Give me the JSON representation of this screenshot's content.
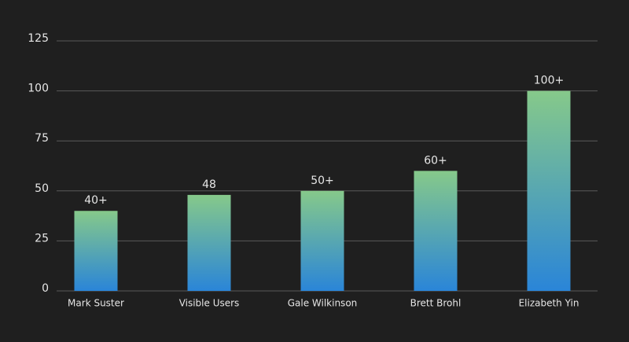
{
  "chart_data": {
    "type": "bar",
    "categories": [
      "Mark Suster",
      "Visible Users",
      "Gale Wilkinson",
      "Brett Brohl",
      "Elizabeth Yin"
    ],
    "values": [
      40,
      48,
      50,
      60,
      100
    ],
    "value_labels": [
      "40+",
      "48",
      "50+",
      "60+",
      "100+"
    ],
    "ylim": [
      0,
      125
    ],
    "yticks": [
      0,
      25,
      50,
      75,
      100,
      125
    ],
    "grid": true
  }
}
